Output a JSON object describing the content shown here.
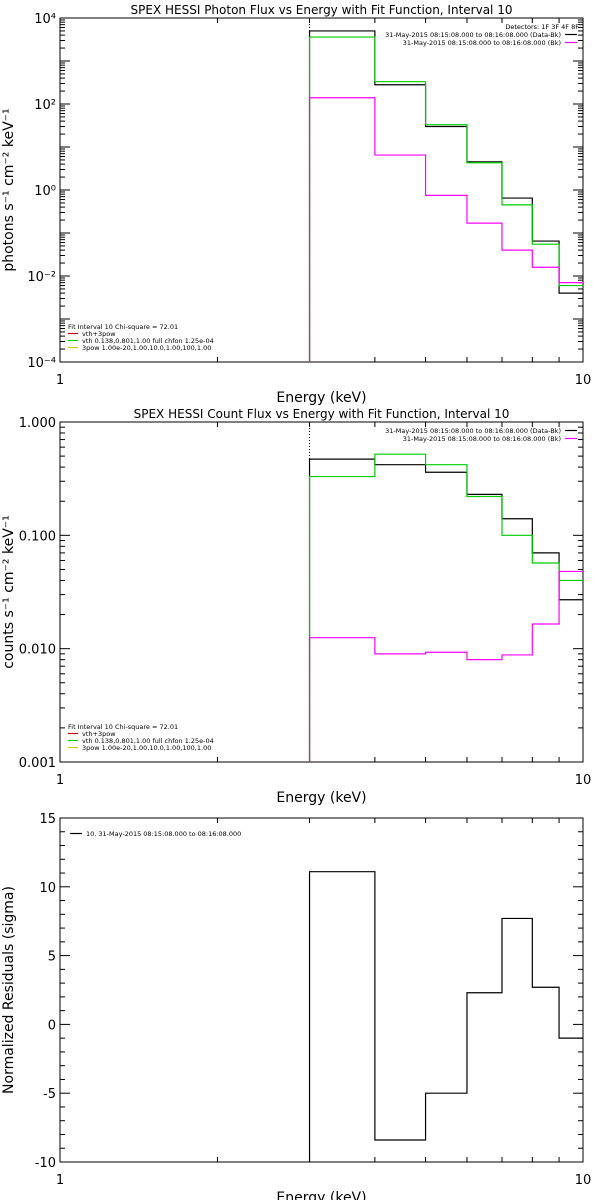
{
  "chart_data": [
    {
      "type": "line",
      "title": "SPEX HESSI Photon Flux vs Energy with Fit Function, Interval 10",
      "xlabel": "Energy (keV)",
      "ylabel": "photons s⁻¹ cm⁻² keV⁻¹",
      "xscale": "log",
      "yscale": "log",
      "xlim": [
        1,
        10
      ],
      "ylim": [
        0.0001,
        10000
      ],
      "x_ticks": [
        {
          "value": 1,
          "label": "1"
        },
        {
          "value": 10,
          "label": "10"
        }
      ],
      "y_ticks": [
        {
          "value": 0.0001,
          "label": "10⁻⁴"
        },
        {
          "value": 0.01,
          "label": "10⁻²"
        },
        {
          "value": 1,
          "label": "10⁰"
        },
        {
          "value": 100,
          "label": "10²"
        },
        {
          "value": 10000,
          "label": "10⁴"
        }
      ],
      "bin_edges": [
        3.0,
        4.0,
        5.0,
        6.0,
        7.0,
        8.0,
        9.0,
        10.0
      ],
      "series": [
        {
          "name": "31-May-2015 08:15:08.000 to 08:16:08.000 (Data-Bk)",
          "color": "#000000",
          "values": [
            5000,
            280,
            30,
            4.5,
            0.65,
            0.065,
            0.004
          ]
        },
        {
          "name": "vth+3pow",
          "color": "#00cc00",
          "values": [
            3600,
            330,
            33,
            4.3,
            0.45,
            0.055,
            0.006
          ]
        },
        {
          "name": "31-May-2015 08:15:08.000 to 08:16:08.000 (Bk)",
          "color": "#ff00ff",
          "values": [
            140,
            6.5,
            0.75,
            0.17,
            0.04,
            0.016,
            0.007
          ]
        }
      ],
      "vline_x": 3.0,
      "legend_top_right": {
        "detectors": "Detectors: 1F 3F 4F 8F",
        "entries": [
          {
            "text": "31-May-2015 08:15:08.000 to 08:16:08.000 (Data-Bk)",
            "color": "#000000"
          },
          {
            "text": "31-May-2015 08:15:08.000 to 08:16:08.000 (Bk)",
            "color": "#ff00ff"
          }
        ]
      },
      "legend_bottom_left": {
        "header": "Fit Interval 10   Chi-square = 72.01",
        "entries": [
          {
            "text": "vth+3pow",
            "color": "#cc0000"
          },
          {
            "text": "vth 0.138,0.801,1.00  full chfon 1.25e-04",
            "color": "#00cc00"
          },
          {
            "text": "3pow 1.00e-20,1.00,10.0,1.00,100,1.00",
            "color": "#cccc00"
          }
        ]
      }
    },
    {
      "type": "line",
      "title": "SPEX HESSI Count Flux vs Energy with Fit Function, Interval 10",
      "xlabel": "Energy (keV)",
      "ylabel": "counts s⁻¹ cm⁻² keV⁻¹",
      "xscale": "log",
      "yscale": "log",
      "xlim": [
        1,
        10
      ],
      "ylim": [
        0.001,
        1
      ],
      "x_ticks": [
        {
          "value": 1,
          "label": "1"
        },
        {
          "value": 10,
          "label": "10"
        }
      ],
      "y_ticks": [
        {
          "value": 0.001,
          "label": "0.001"
        },
        {
          "value": 0.01,
          "label": "0.010"
        },
        {
          "value": 0.1,
          "label": "0.100"
        },
        {
          "value": 1,
          "label": "1.000"
        }
      ],
      "bin_edges": [
        3.0,
        4.0,
        5.0,
        6.0,
        7.0,
        8.0,
        9.0,
        10.0
      ],
      "series": [
        {
          "name": "31-May-2015 08:15:08.000 to 08:16:08.000 (Data-Bk)",
          "color": "#000000",
          "values": [
            0.47,
            0.42,
            0.36,
            0.23,
            0.14,
            0.07,
            0.027
          ]
        },
        {
          "name": "vth+3pow",
          "color": "#00cc00",
          "values": [
            0.33,
            0.52,
            0.42,
            0.22,
            0.1,
            0.057,
            0.04
          ]
        },
        {
          "name": "31-May-2015 08:15:08.000 to 08:16:08.000 (Bk)",
          "color": "#ff00ff",
          "values": [
            0.0125,
            0.009,
            0.0093,
            0.008,
            0.0088,
            0.0165,
            0.048
          ]
        }
      ],
      "vline_x": 3.0,
      "legend_top_right": {
        "detectors": "",
        "entries": [
          {
            "text": "31-May-2015 08:15:08.000 to 08:16:08.000 (Data-Bk)",
            "color": "#000000"
          },
          {
            "text": "31-May-2015 08:15:08.000 to 08:16:08.000 (Bk)",
            "color": "#ff00ff"
          }
        ]
      },
      "legend_bottom_left": {
        "header": "Fit Interval 10   Chi-square = 72.01",
        "entries": [
          {
            "text": "vth+3pow",
            "color": "#cc0000"
          },
          {
            "text": "vth 0.138,0.801,1.00  full chfon 1.25e-04",
            "color": "#00cc00"
          },
          {
            "text": "3pow 1.00e-20,1.00,10.0,1.00,100,1.00",
            "color": "#cccc00"
          }
        ]
      }
    },
    {
      "type": "line",
      "title": "",
      "xlabel": "Energy (keV)",
      "ylabel": "Normalized Residuals (sigma)",
      "xscale": "log",
      "yscale": "linear",
      "xlim": [
        1,
        10
      ],
      "ylim": [
        -10,
        15
      ],
      "x_ticks": [
        {
          "value": 1,
          "label": "1"
        },
        {
          "value": 10,
          "label": "10"
        }
      ],
      "y_ticks": [
        {
          "value": -10,
          "label": "-10"
        },
        {
          "value": -5,
          "label": "-5"
        },
        {
          "value": 0,
          "label": "0"
        },
        {
          "value": 5,
          "label": "5"
        },
        {
          "value": 10,
          "label": "10"
        },
        {
          "value": 15,
          "label": "15"
        }
      ],
      "bin_edges": [
        3.0,
        4.0,
        5.0,
        6.0,
        7.0,
        8.0,
        9.0,
        10.0
      ],
      "series": [
        {
          "name": "10. 31-May-2015 08:15:08.000 to 08:16:08.000",
          "color": "#000000",
          "values": [
            11.1,
            -8.4,
            -5.0,
            2.3,
            7.7,
            2.7,
            -1.0
          ]
        }
      ],
      "legend_top_left": {
        "entries": [
          {
            "text": "10. 31-May-2015 08:15:08.000 to 08:16:08.000",
            "color": "#000000"
          }
        ]
      }
    }
  ]
}
